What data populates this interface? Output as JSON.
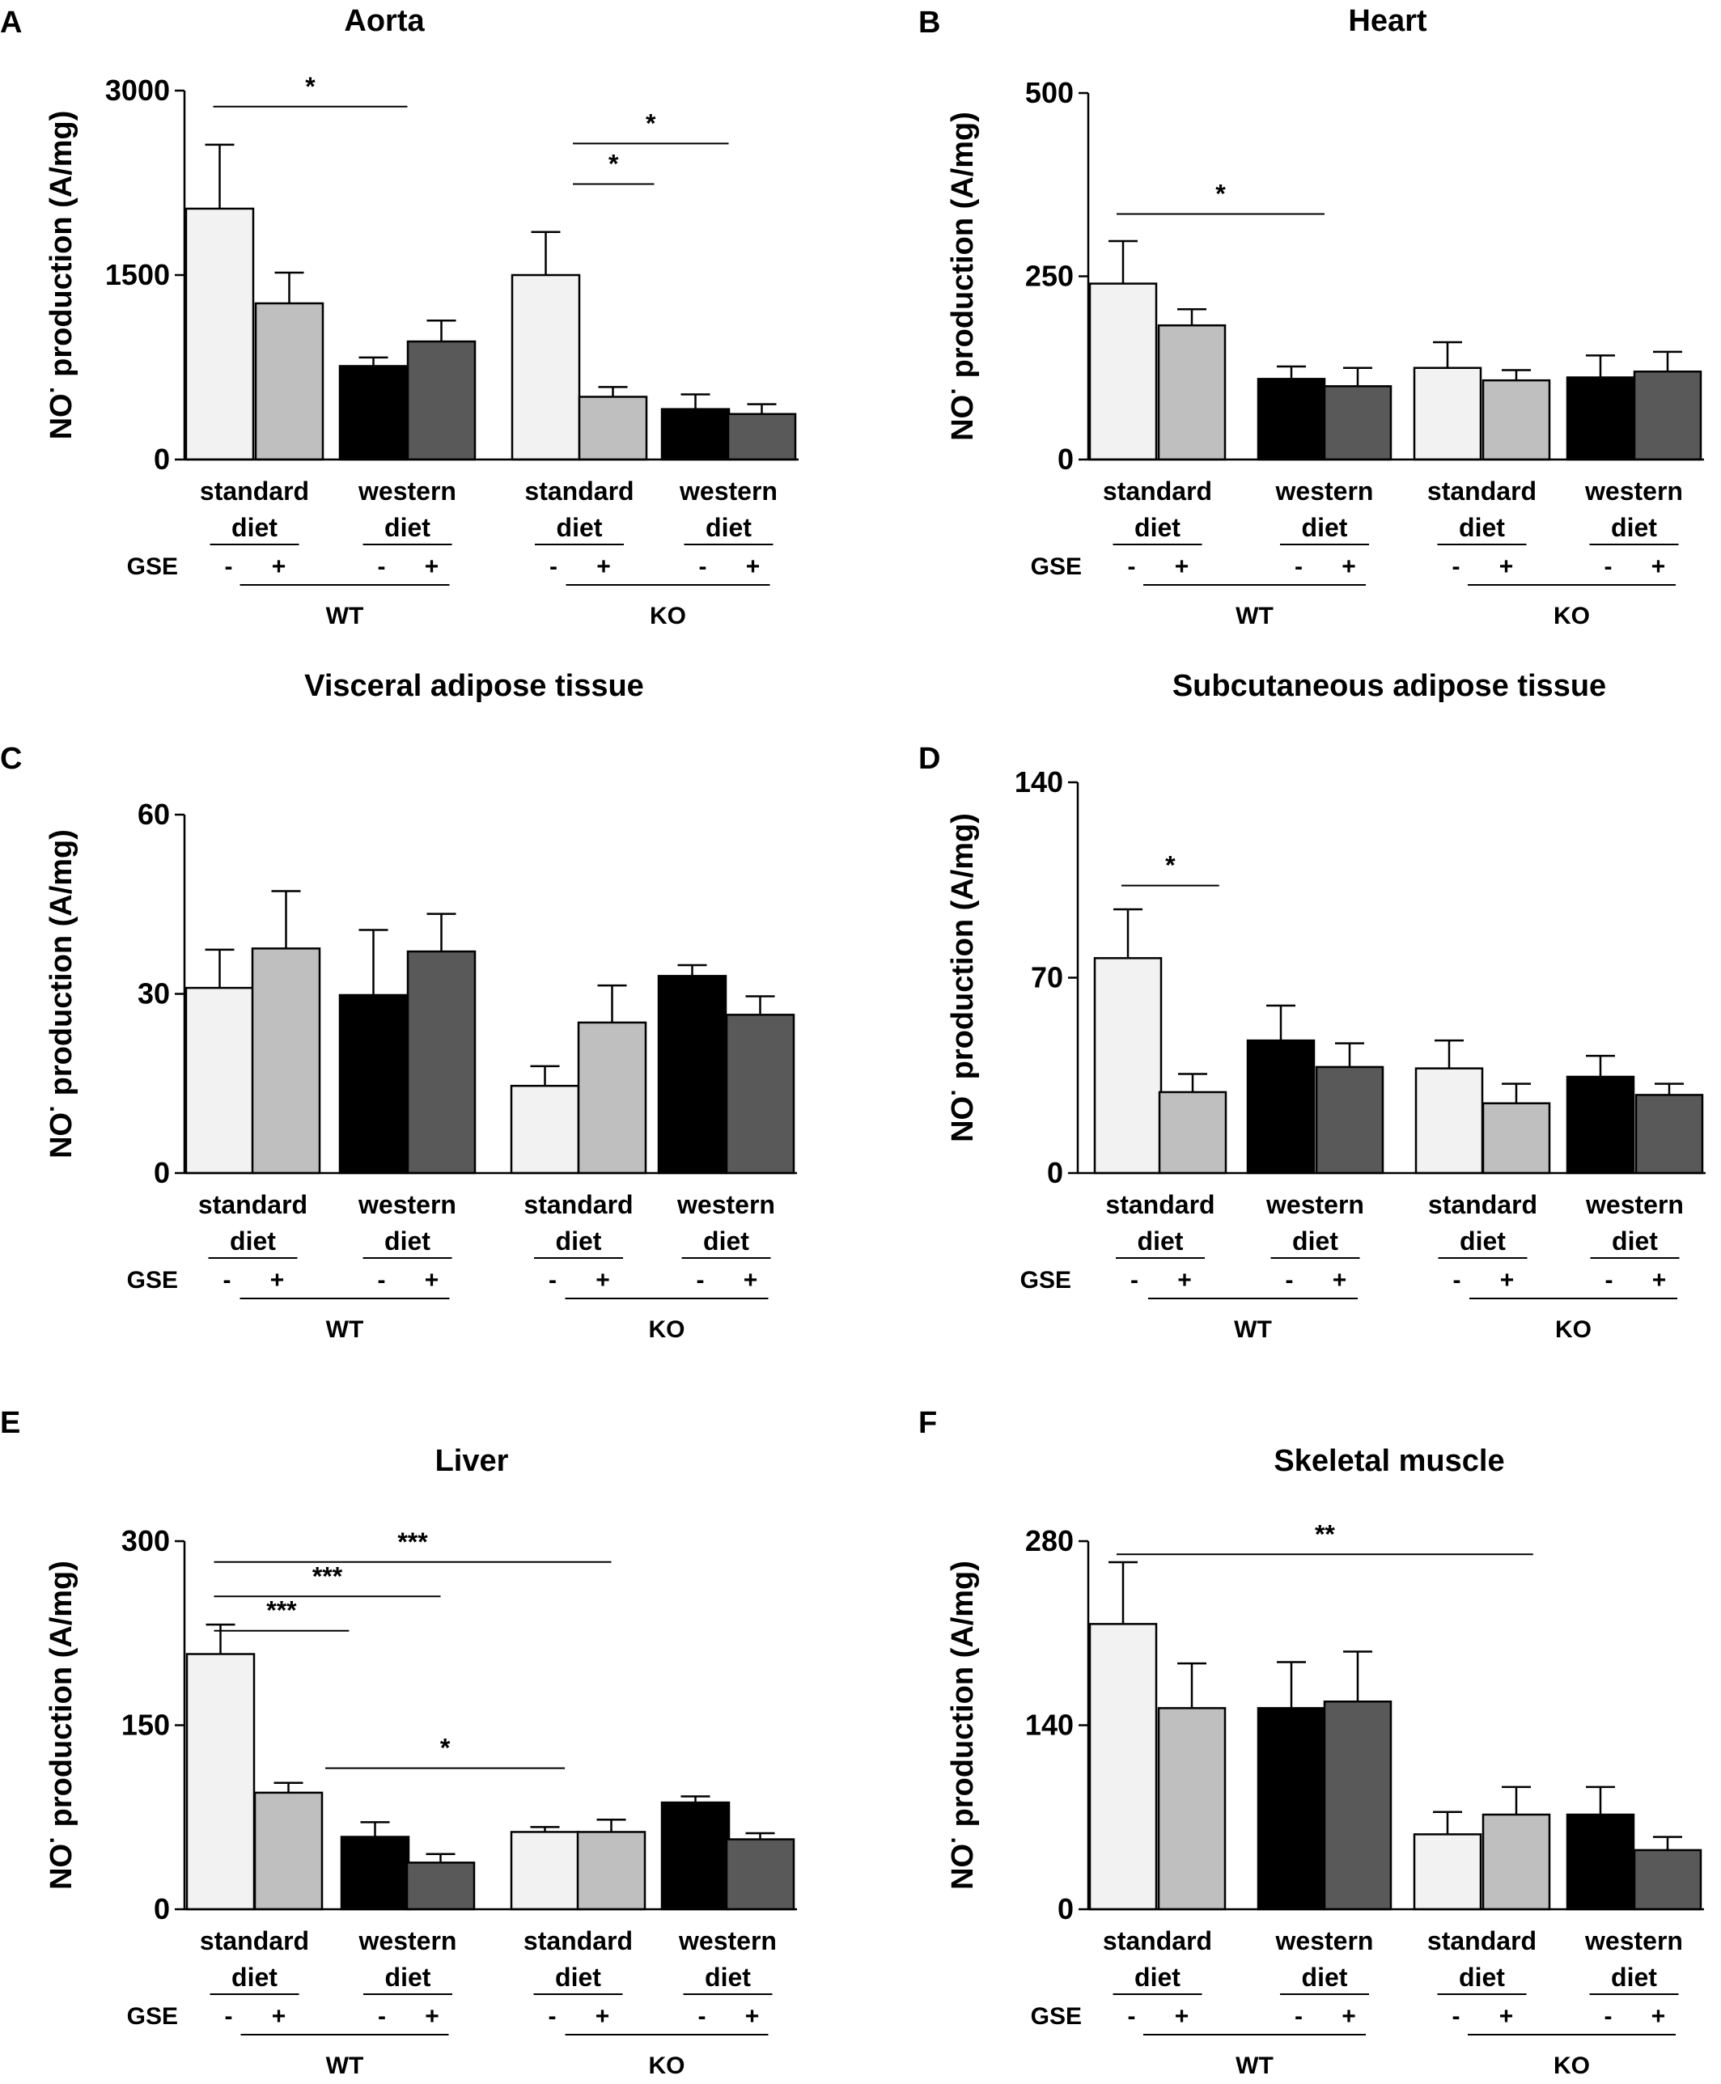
{
  "figure": {
    "colors": {
      "standard_minus": "#f2f2f2",
      "standard_plus": "#bfbfbf",
      "western_minus": "#000000",
      "western_plus": "#595959",
      "stroke": "#000000"
    },
    "common": {
      "ylabel_main": "NO",
      "ylabel_sup": "·",
      "ylabel_rest": " production (A/mg)",
      "diet_labels": [
        [
          "standard",
          "diet"
        ],
        [
          "western",
          "diet"
        ],
        [
          "standard",
          "diet"
        ],
        [
          "western",
          "diet"
        ]
      ],
      "gse_label": "GSE",
      "signs": [
        "-",
        "+",
        "-",
        "+",
        "-",
        "+",
        "-",
        "+"
      ],
      "group_labels": [
        "WT",
        "KO"
      ]
    }
  },
  "chart_data": [
    {
      "panel": "A",
      "title": "Aorta",
      "type": "bar",
      "categories": [
        "WT standard -",
        "WT standard +",
        "WT western -",
        "WT western +",
        "KO standard -",
        "KO standard +",
        "KO western -",
        "KO western +"
      ],
      "values": [
        2040,
        1270,
        760,
        960,
        1500,
        510,
        410,
        370
      ],
      "errors": [
        520,
        250,
        70,
        170,
        350,
        80,
        120,
        80
      ],
      "ylim": [
        0,
        3000
      ],
      "yticks": [
        0,
        1500,
        3000
      ],
      "ytick_labels": [
        "0",
        "1500",
        "3000"
      ],
      "ylabel": "NO· production (A/mg)",
      "significance": [
        {
          "from": 0,
          "to": 2.5,
          "level": 2870,
          "label": "*"
        },
        {
          "from": 4.5,
          "to": 6.5,
          "level": 2570,
          "label": "*"
        },
        {
          "from": 4.5,
          "to": 5.5,
          "level": 2240,
          "label": "*"
        }
      ]
    },
    {
      "panel": "B",
      "title": "Heart",
      "type": "bar",
      "categories": [
        "WT standard -",
        "WT standard +",
        "WT western -",
        "WT western +",
        "KO standard -",
        "KO standard +",
        "KO western -",
        "KO western +"
      ],
      "values": [
        240,
        183,
        110,
        100,
        125,
        108,
        112,
        120
      ],
      "errors": [
        58,
        22,
        17,
        25,
        35,
        14,
        30,
        27
      ],
      "ylim": [
        0,
        500
      ],
      "yticks": [
        0,
        250,
        500
      ],
      "ytick_labels": [
        "0",
        "250",
        "500"
      ],
      "ylabel": "NO· production (A/mg)",
      "significance": [
        {
          "from": 0,
          "to": 2.5,
          "level": 335,
          "label": "*"
        }
      ]
    },
    {
      "panel": "C",
      "title": "Visceral adipose tissue",
      "type": "bar",
      "categories": [
        "WT standard -",
        "WT standard +",
        "WT western -",
        "WT western +",
        "KO standard -",
        "KO standard +",
        "KO western -",
        "KO western +"
      ],
      "values": [
        31,
        37.6,
        29.8,
        37.1,
        14.6,
        25.2,
        33,
        26.5
      ],
      "errors": [
        6.4,
        9.6,
        10.9,
        6.3,
        3.3,
        6.2,
        1.8,
        3.1
      ],
      "ylim": [
        0,
        60
      ],
      "yticks": [
        0,
        30,
        60
      ],
      "ytick_labels": [
        "0",
        "30",
        "60"
      ],
      "ylabel": "NO· production (A/mg)",
      "significance": []
    },
    {
      "panel": "D",
      "title": "Subcutaneous  adipose tissue",
      "type": "bar",
      "categories": [
        "WT standard -",
        "WT standard +",
        "WT western -",
        "WT western +",
        "KO standard -",
        "KO standard +",
        "KO western -",
        "KO western +"
      ],
      "values": [
        77,
        29,
        47.5,
        38,
        37.5,
        25,
        34.5,
        28
      ],
      "errors": [
        17.5,
        6.5,
        12.5,
        8.5,
        10,
        7,
        7.5,
        4
      ],
      "ylim": [
        0,
        140
      ],
      "yticks": [
        0,
        70,
        140
      ],
      "ytick_labels": [
        "0",
        "70",
        "140"
      ],
      "ylabel": "NO· production (A/mg)",
      "significance": [
        {
          "from": 0,
          "to": 1.3,
          "level": 103,
          "label": "*"
        }
      ]
    },
    {
      "panel": "E",
      "title": "Liver",
      "type": "bar",
      "categories": [
        "WT standard -",
        "WT standard +",
        "WT western -",
        "WT western +",
        "KO standard -",
        "KO standard +",
        "KO western -",
        "KO western +"
      ],
      "values": [
        208,
        95,
        59,
        38,
        63,
        63,
        87,
        57
      ],
      "errors": [
        24,
        8,
        12,
        7,
        4,
        10,
        5,
        5
      ],
      "ylim": [
        0,
        300
      ],
      "yticks": [
        0,
        150,
        300
      ],
      "ytick_labels": [
        "0",
        "150",
        "300"
      ],
      "ylabel": "NO· production (A/mg)",
      "significance": [
        {
          "from": 0,
          "to": 5,
          "level": 283,
          "label": "***"
        },
        {
          "from": 0,
          "to": 3,
          "level": 255,
          "label": "***"
        },
        {
          "from": 0,
          "to": 1.7,
          "level": 227,
          "label": "***"
        },
        {
          "from": 1.5,
          "to": 4.3,
          "level": 115,
          "label": "*"
        }
      ]
    },
    {
      "panel": "F",
      "title": "Skeletal muscle",
      "type": "bar",
      "categories": [
        "WT standard -",
        "WT standard +",
        "WT western -",
        "WT western +",
        "KO standard -",
        "KO standard +",
        "KO western -",
        "KO western +"
      ],
      "values": [
        217,
        153,
        153,
        158,
        57,
        72,
        72,
        45
      ],
      "errors": [
        47,
        34,
        35,
        38,
        17,
        21,
        21,
        10
      ],
      "ylim": [
        0,
        280
      ],
      "yticks": [
        0,
        140,
        280
      ],
      "ytick_labels": [
        "0",
        "140",
        "280"
      ],
      "ylabel": "NO· production (A/mg)",
      "significance": [
        {
          "from": 0,
          "to": 5.2,
          "level": 270,
          "label": "**"
        }
      ]
    }
  ]
}
